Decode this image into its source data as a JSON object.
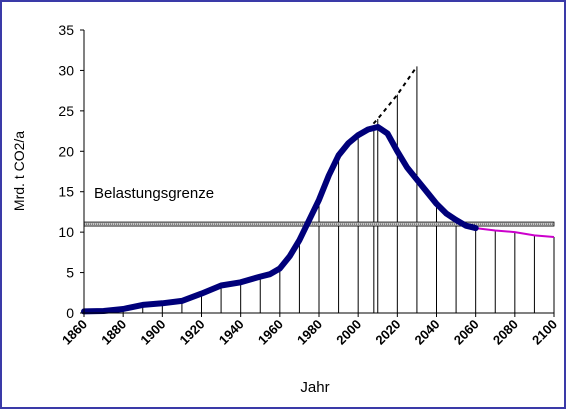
{
  "chart_data": {
    "type": "line",
    "title": "",
    "xlabel": "Jahr",
    "ylabel": "Mrd. t CO2/a",
    "xlim": [
      1860,
      2100
    ],
    "ylim": [
      0,
      35
    ],
    "x_ticks": [
      1860,
      1880,
      1900,
      1920,
      1940,
      1960,
      1980,
      2000,
      2020,
      2040,
      2060,
      2080,
      2100
    ],
    "y_ticks": [
      0,
      5,
      10,
      15,
      20,
      25,
      30,
      35
    ],
    "grid": false,
    "annotation": {
      "text": "Belastungsgrenze",
      "y": 11
    },
    "vertical_marker_years": [
      1870,
      1880,
      1890,
      1900,
      1910,
      1920,
      1930,
      1940,
      1950,
      1960,
      1970,
      1980,
      1990,
      2000,
      2008,
      2010,
      2020,
      2030,
      2040,
      2050,
      2060,
      2070,
      2080,
      2090,
      2100
    ],
    "series": [
      {
        "role": "historical",
        "color": "#00007a",
        "points": [
          [
            1860,
            0.2
          ],
          [
            1870,
            0.25
          ],
          [
            1880,
            0.5
          ],
          [
            1890,
            1.0
          ],
          [
            1900,
            1.2
          ],
          [
            1910,
            1.5
          ],
          [
            1920,
            2.4
          ],
          [
            1930,
            3.4
          ],
          [
            1940,
            3.8
          ],
          [
            1950,
            4.5
          ],
          [
            1955,
            4.8
          ],
          [
            1960,
            5.5
          ],
          [
            1965,
            7.0
          ],
          [
            1970,
            9.0
          ],
          [
            1975,
            11.5
          ],
          [
            1980,
            14.0
          ],
          [
            1985,
            17.0
          ],
          [
            1990,
            19.5
          ],
          [
            1995,
            21.0
          ],
          [
            2000,
            22.0
          ],
          [
            2005,
            22.7
          ],
          [
            2010,
            23.0
          ],
          [
            2015,
            22.2
          ],
          [
            2020,
            20.0
          ],
          [
            2025,
            18.0
          ],
          [
            2030,
            16.5
          ],
          [
            2035,
            15.0
          ],
          [
            2040,
            13.5
          ],
          [
            2045,
            12.3
          ],
          [
            2050,
            11.5
          ],
          [
            2055,
            10.8
          ],
          [
            2060,
            10.5
          ]
        ]
      },
      {
        "role": "projection-dashed",
        "color": "#000000",
        "points": [
          [
            2005,
            22.7
          ],
          [
            2010,
            24.0
          ],
          [
            2020,
            27.0
          ],
          [
            2030,
            30.5
          ]
        ]
      },
      {
        "role": "projection-low",
        "color": "#cc00cc",
        "points": [
          [
            2060,
            10.5
          ],
          [
            2070,
            10.2
          ],
          [
            2080,
            10.0
          ],
          [
            2090,
            9.6
          ],
          [
            2100,
            9.4
          ]
        ]
      }
    ]
  }
}
